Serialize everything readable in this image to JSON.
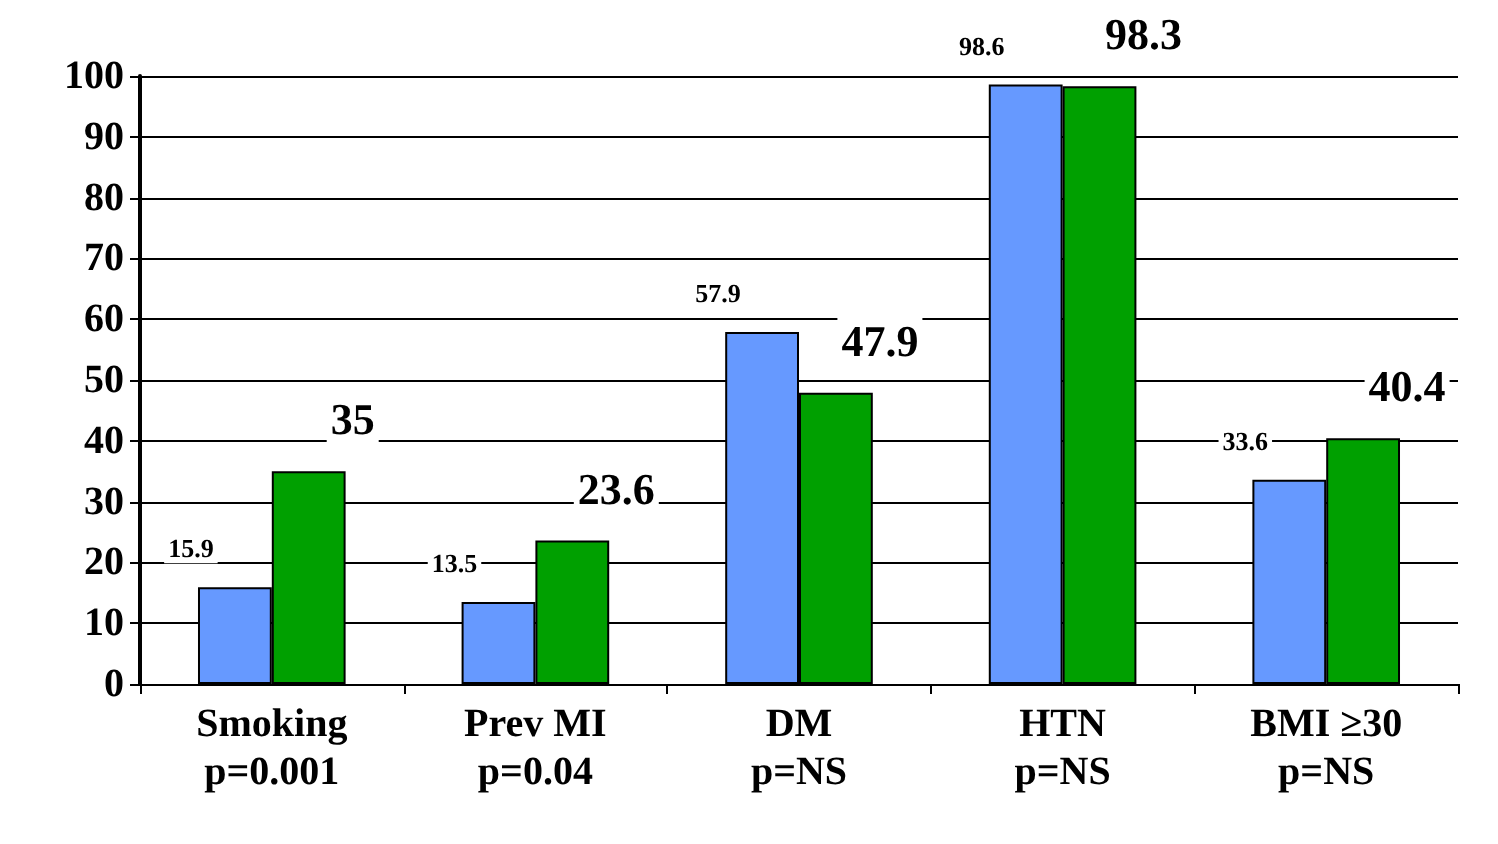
{
  "chart_data": {
    "type": "bar",
    "categories": [
      "Smoking\np=0.001",
      "Prev MI\np=0.04",
      "DM\np=NS",
      "HTN\np=NS",
      "BMI ≥30\np=NS"
    ],
    "series": [
      {
        "color": "#6699ff",
        "values": [
          15.9,
          13.5,
          57.9,
          98.6,
          33.6
        ]
      },
      {
        "color": "#00a000",
        "values": [
          35,
          23.6,
          47.9,
          98.3,
          40.4
        ]
      }
    ],
    "ylim": [
      0,
      100
    ],
    "yticks": [
      0,
      10,
      20,
      30,
      40,
      50,
      60,
      70,
      80,
      90,
      100
    ],
    "grid": "y",
    "data_labels": true
  }
}
